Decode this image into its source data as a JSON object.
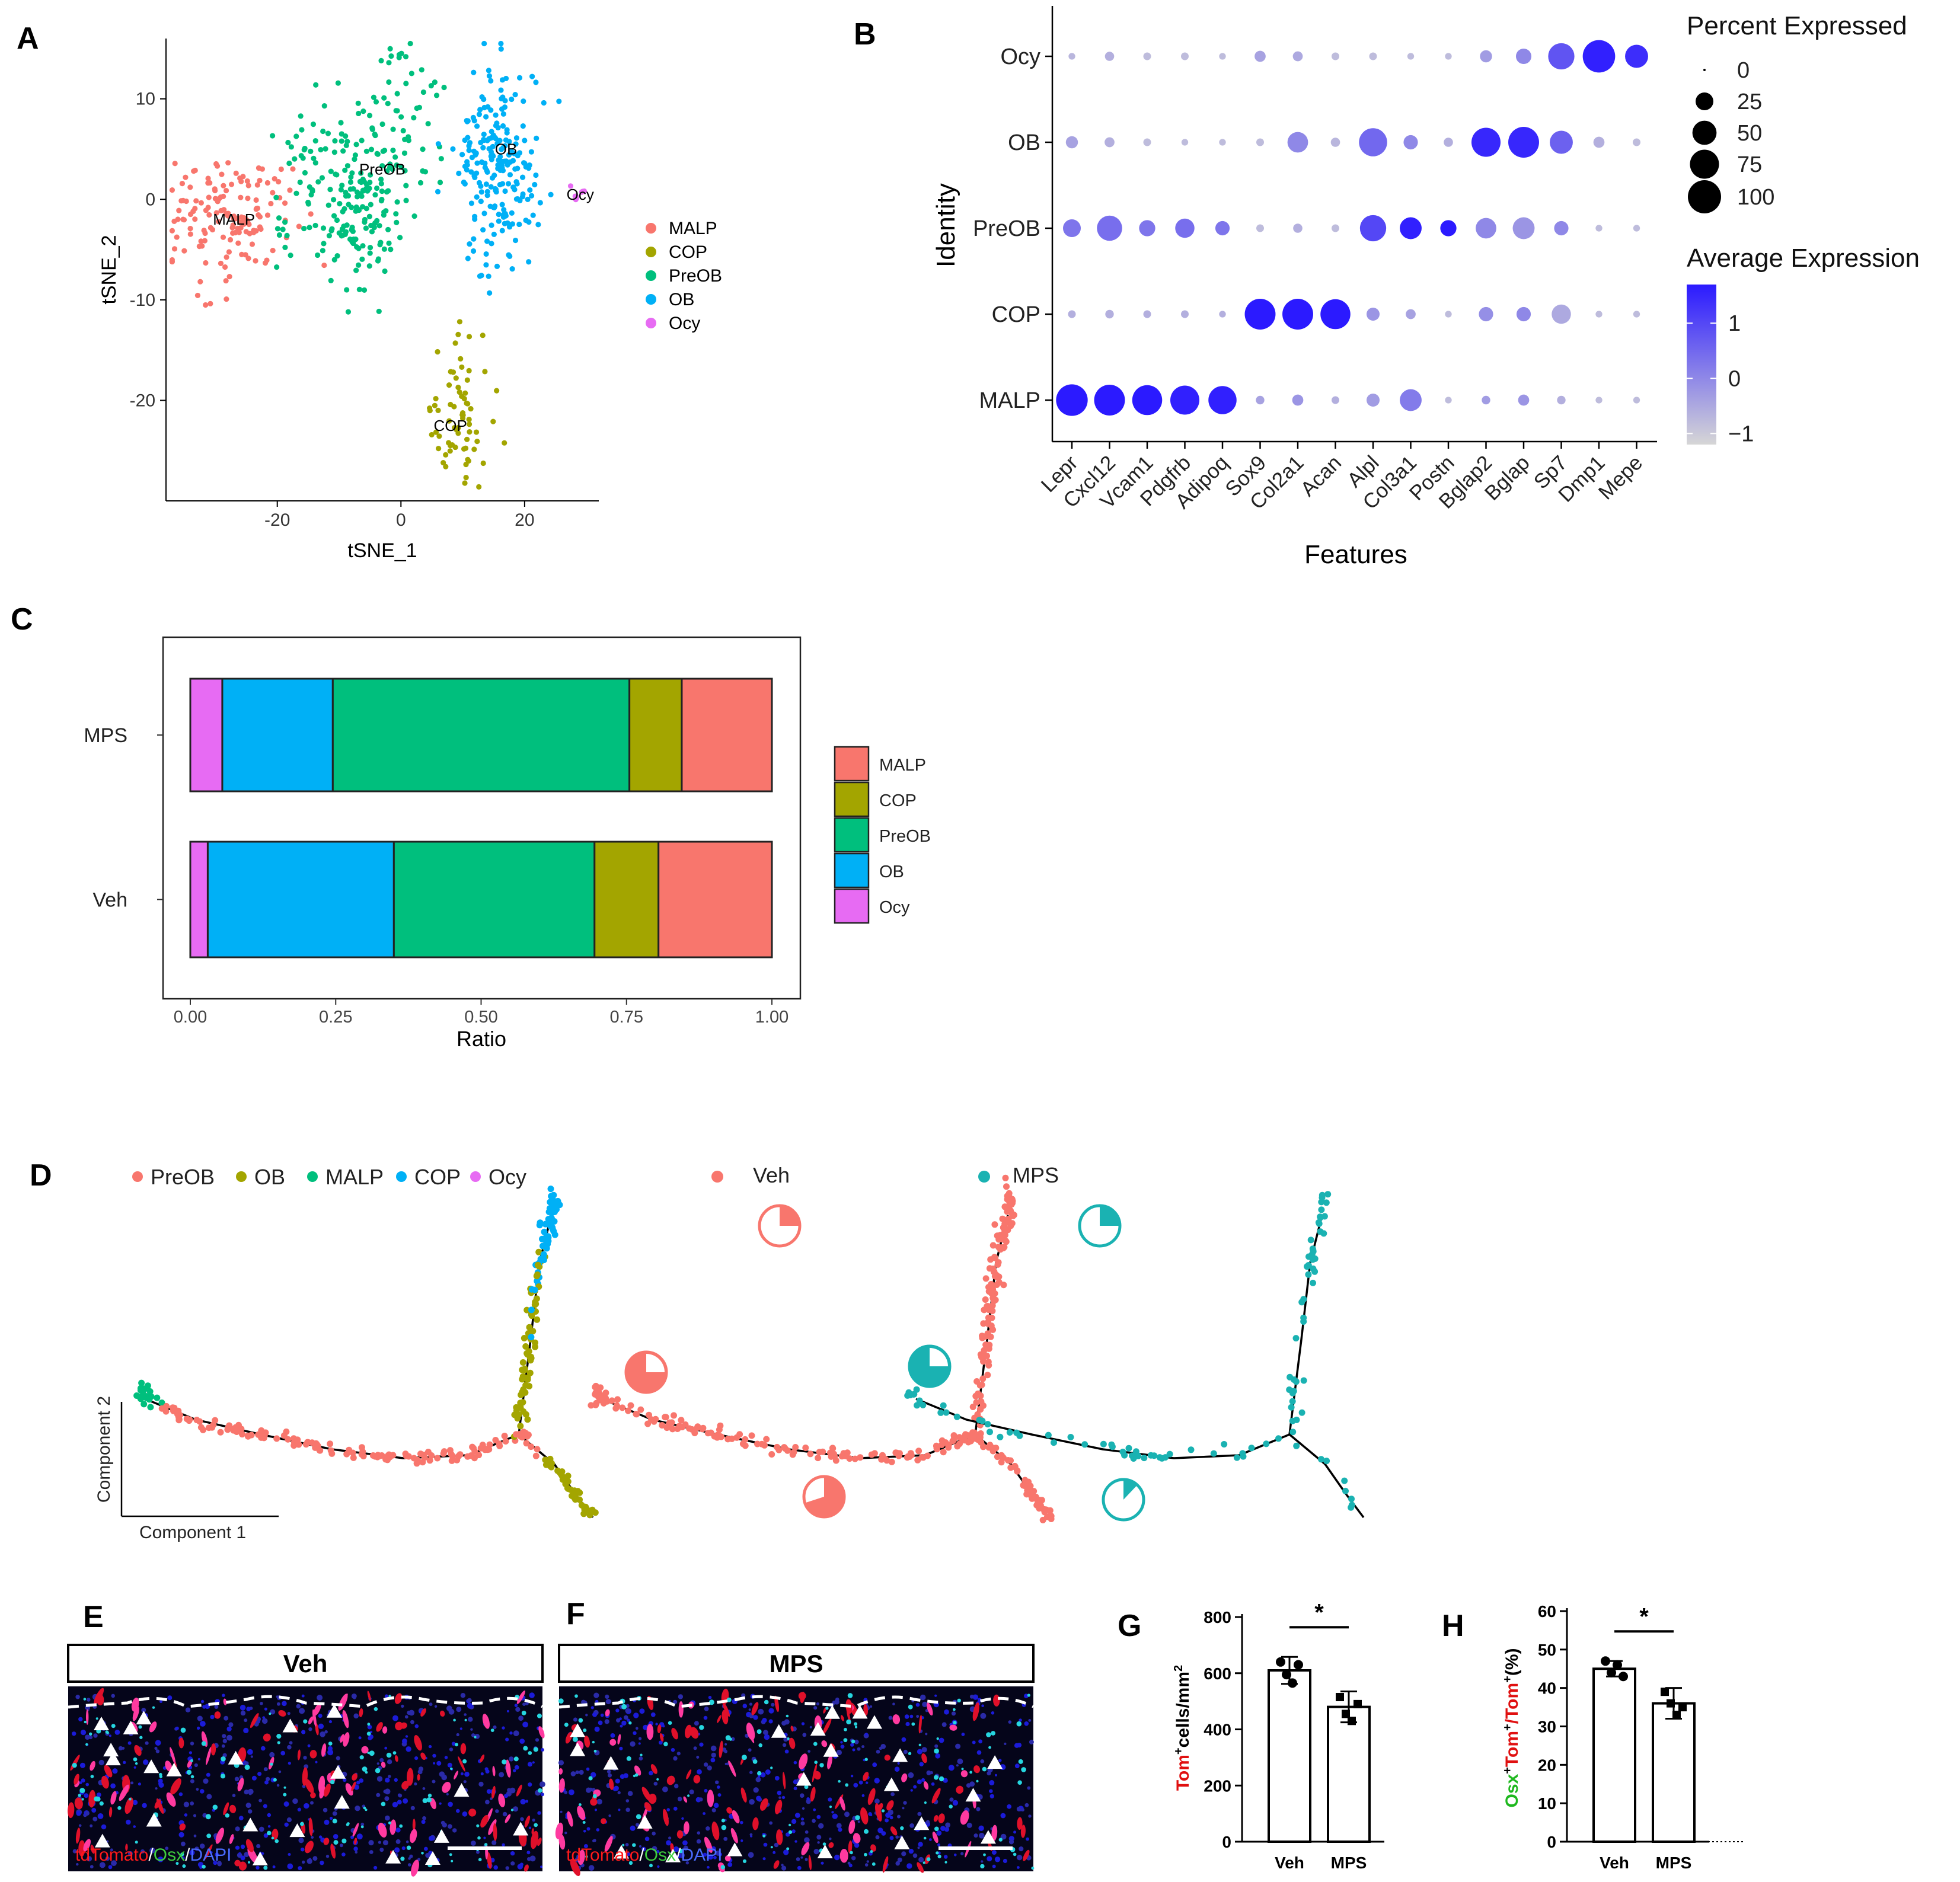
{
  "panel_labels": [
    "A",
    "B",
    "C",
    "D",
    "E",
    "F",
    "G",
    "H"
  ],
  "colors": {
    "MALP": "#F8766D",
    "COP": "#A3A500",
    "PreOB": "#00BF7D",
    "OB": "#00B0F6",
    "Ocy": "#E76BF3",
    "D_PreOB": "#F8766D",
    "D_OB": "#A3A500",
    "D_MALP": "#00BF7D",
    "D_COP": "#00B0F6",
    "D_Ocy": "#E76BF3",
    "veh": "#F8766D",
    "mps": "#1AB2B2",
    "dot_high": "#2B1AFF",
    "dot_low": "#D6D6D6"
  },
  "chart_data": [
    {
      "panel": "A",
      "type": "scatter",
      "xlabel": "tSNE_1",
      "ylabel": "tSNE_2",
      "xticks": [
        -20,
        0,
        20
      ],
      "yticks": [
        10,
        0,
        -10,
        -20
      ],
      "xlim": [
        -38,
        32
      ],
      "ylim": [
        -30,
        16
      ],
      "legend": [
        "MALP",
        "COP",
        "PreOB",
        "OB",
        "Ocy"
      ],
      "legend_position": "right",
      "clusters": [
        {
          "name": "MALP",
          "label": "MALP",
          "center": [
            -28,
            -2
          ],
          "spread": [
            5,
            3
          ],
          "n": 150,
          "label_at": [
            -27,
            -2
          ]
        },
        {
          "name": "COP",
          "label": "COP",
          "center": [
            9,
            -22
          ],
          "spread": [
            2.5,
            3
          ],
          "n": 70,
          "label_at": [
            8,
            -22.5
          ]
        },
        {
          "name": "PreOB",
          "label": "PreOB",
          "center": [
            -3,
            3
          ],
          "spread": [
            7,
            5
          ],
          "n": 260,
          "label_at": [
            -3,
            3
          ]
        },
        {
          "name": "OB",
          "label": "OB",
          "center": [
            16,
            3
          ],
          "spread": [
            3.5,
            5
          ],
          "n": 220,
          "label_at": [
            17,
            5
          ]
        },
        {
          "name": "Ocy",
          "label": "Ocy",
          "center": [
            29,
            0.5
          ],
          "spread": [
            0.6,
            0.5
          ],
          "n": 8,
          "label_at": [
            29,
            0.5
          ]
        }
      ]
    },
    {
      "panel": "B",
      "type": "heatmap",
      "xlabel": "Features",
      "ylabel": "Identity",
      "features": [
        "Lepr",
        "Cxcl12",
        "Vcam1",
        "Pdgfrb",
        "Adipoq",
        "Sox9",
        "Col2a1",
        "Acan",
        "Alpl",
        "Col3a1",
        "Postn",
        "Bglap2",
        "Bglap",
        "Sp7",
        "Dmp1",
        "Mepe"
      ],
      "identities": [
        "Ocy",
        "OB",
        "PreOB",
        "COP",
        "MALP"
      ],
      "percent_expressed": [
        [
          2,
          5,
          3,
          3,
          2,
          8,
          6,
          3,
          3,
          2,
          2,
          10,
          18,
          60,
          95,
          45
        ],
        [
          10,
          6,
          3,
          2,
          2,
          3,
          35,
          5,
          70,
          15,
          5,
          75,
          85,
          45,
          8,
          3
        ],
        [
          25,
          55,
          20,
          30,
          15,
          3,
          5,
          3,
          60,
          40,
          20,
          35,
          40,
          15,
          2,
          2
        ],
        [
          3,
          4,
          3,
          3,
          2,
          85,
          85,
          80,
          12,
          6,
          2,
          15,
          15,
          30,
          2,
          2
        ],
        [
          90,
          85,
          80,
          75,
          70,
          4,
          8,
          3,
          12,
          40,
          2,
          4,
          8,
          4,
          2,
          2
        ]
      ],
      "average_expression": [
        [
          -0.7,
          -0.6,
          -0.8,
          -0.8,
          -0.8,
          -0.4,
          -0.5,
          -0.8,
          -0.8,
          -0.8,
          -0.8,
          -0.3,
          0.0,
          0.8,
          1.6,
          1.4
        ],
        [
          -0.4,
          -0.6,
          -0.8,
          -0.8,
          -0.8,
          -0.8,
          0.0,
          -0.7,
          0.5,
          0.0,
          -0.6,
          1.5,
          1.5,
          0.6,
          -0.6,
          -0.8
        ],
        [
          0.3,
          0.4,
          0.3,
          0.4,
          0.3,
          -0.8,
          -0.6,
          -0.8,
          1.0,
          1.6,
          1.7,
          0.0,
          -0.2,
          0.0,
          -0.8,
          -0.8
        ],
        [
          -0.6,
          -0.6,
          -0.6,
          -0.6,
          -0.6,
          1.7,
          1.7,
          1.7,
          -0.2,
          -0.4,
          -0.8,
          -0.1,
          0.0,
          -0.5,
          -0.8,
          -0.8
        ],
        [
          1.7,
          1.7,
          1.7,
          1.6,
          1.6,
          -0.4,
          -0.2,
          -0.6,
          -0.3,
          0.2,
          -0.8,
          -0.3,
          -0.2,
          -0.6,
          -0.8,
          -0.8
        ]
      ],
      "size_legend_title": "Percent Expressed",
      "size_legend": [
        0,
        25,
        50,
        75,
        100
      ],
      "color_legend_title": "Average Expression",
      "color_ticks": [
        1,
        0,
        -1
      ],
      "color_range": [
        -1.2,
        1.7
      ]
    },
    {
      "panel": "C",
      "type": "bar",
      "xlabel": "Ratio",
      "xticks": [
        "0.00",
        "0.25",
        "0.50",
        "0.75",
        "1.00"
      ],
      "xlim": [
        0,
        1
      ],
      "categories": [
        "MPS",
        "Veh"
      ],
      "series": [
        {
          "name": "Ocy",
          "values": [
            0.055,
            0.03
          ]
        },
        {
          "name": "OB",
          "values": [
            0.19,
            0.32
          ]
        },
        {
          "name": "PreOB",
          "values": [
            0.51,
            0.345
          ]
        },
        {
          "name": "COP",
          "values": [
            0.09,
            0.11
          ]
        },
        {
          "name": "MALP",
          "values": [
            0.155,
            0.195
          ]
        }
      ],
      "legend": [
        "MALP",
        "COP",
        "PreOB",
        "OB",
        "Ocy"
      ],
      "legend_position": "right"
    },
    {
      "panel": "D",
      "type": "scatter",
      "xlabel": "Component 1",
      "ylabel": "Component 2",
      "legend": [
        "PreOB",
        "OB",
        "MALP",
        "COP",
        "Ocy"
      ],
      "legend_position": "top",
      "subplots": [
        "",
        "Veh",
        "MPS"
      ],
      "pie_fractions": {
        "Veh": {
          "top": 0.25,
          "left": 0.2,
          "bottom": 0.35
        },
        "MPS": {
          "top": 0.25,
          "left": 0.3,
          "bottom": 0.1
        }
      }
    },
    {
      "panel": "G",
      "type": "bar",
      "categories": [
        "Veh",
        "MPS"
      ],
      "values": [
        610,
        480
      ],
      "errors": [
        48,
        55
      ],
      "points": [
        [
          640,
          595,
          565,
          630
        ],
        [
          515,
          455,
          430,
          490
        ]
      ],
      "ylabel_main": "Tom",
      "ylabel_sup": "+",
      "ylabel_rest": "cells/mm",
      "ylabel_sup2": "2",
      "yticks": [
        0,
        200,
        400,
        600,
        800
      ],
      "ylim": [
        0,
        800
      ],
      "significance": "*"
    },
    {
      "panel": "H",
      "type": "bar",
      "categories": [
        "Veh",
        "MPS"
      ],
      "values": [
        45,
        36
      ],
      "errors": [
        2,
        4
      ],
      "points": [
        [
          47,
          44,
          46,
          43
        ],
        [
          39,
          36,
          33,
          35
        ]
      ],
      "ylabel_parts": [
        "Osx",
        "+",
        "Tom",
        "+",
        "/Tom",
        "+",
        "(%)"
      ],
      "yticks": [
        0,
        10,
        20,
        30,
        40,
        50,
        60
      ],
      "ylim": [
        0,
        60
      ],
      "significance": "*"
    }
  ],
  "micrographs": [
    {
      "panel": "E",
      "title": "Veh",
      "stain_parts": [
        "tdTomato",
        "/",
        "Osx",
        "/",
        "DAPI"
      ],
      "seed": 11
    },
    {
      "panel": "F",
      "title": "MPS",
      "stain_parts": [
        "tdTomato",
        "/",
        "Osx",
        "/",
        "DAPI"
      ],
      "seed": 23
    }
  ]
}
